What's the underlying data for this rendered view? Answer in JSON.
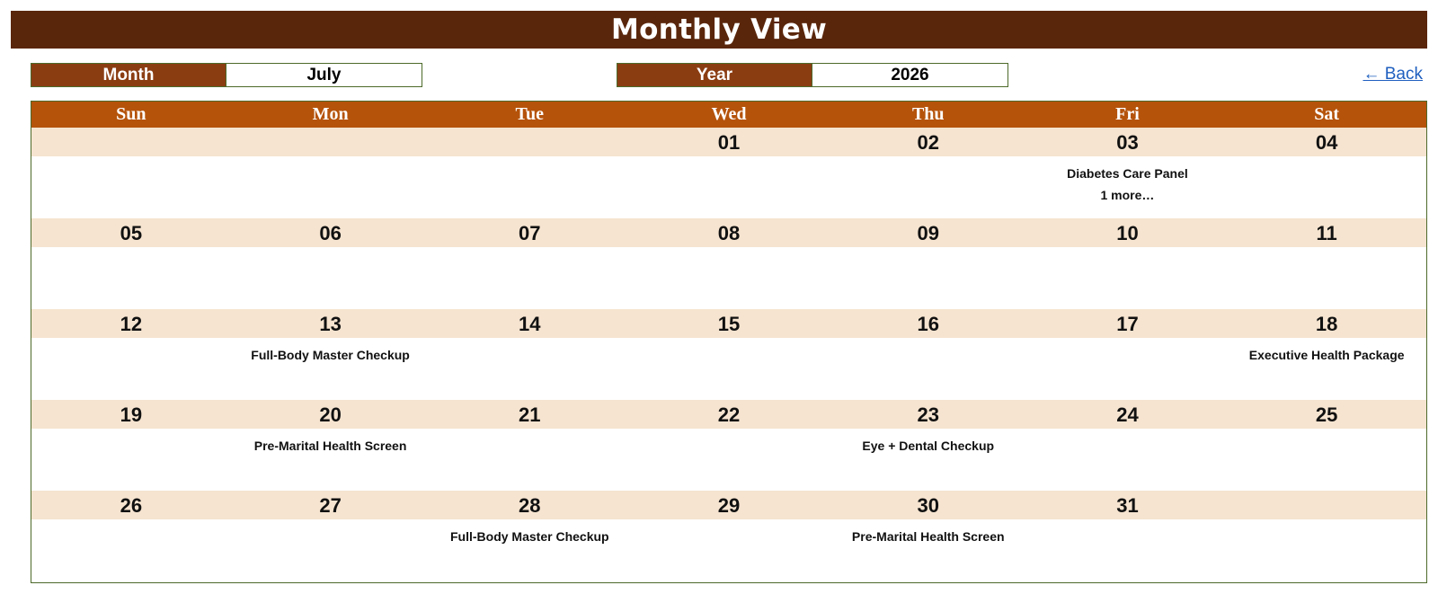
{
  "title": "Monthly View",
  "selectors": {
    "month_label": "Month",
    "month_value": "July",
    "year_label": "Year",
    "year_value": "2026"
  },
  "back_link": "← Back",
  "weekdays": [
    "Sun",
    "Mon",
    "Tue",
    "Wed",
    "Thu",
    "Fri",
    "Sat"
  ],
  "weeks": [
    {
      "dates": [
        "",
        "",
        "",
        "01",
        "02",
        "03",
        "04"
      ],
      "events": [
        [],
        [],
        [],
        [],
        [],
        [
          "Diabetes Care Panel",
          "1 more…"
        ],
        []
      ]
    },
    {
      "dates": [
        "05",
        "06",
        "07",
        "08",
        "09",
        "10",
        "11"
      ],
      "events": [
        [],
        [],
        [],
        [],
        [],
        [],
        []
      ]
    },
    {
      "dates": [
        "12",
        "13",
        "14",
        "15",
        "16",
        "17",
        "18"
      ],
      "events": [
        [],
        [
          "Full-Body Master Checkup"
        ],
        [],
        [],
        [],
        [],
        [
          "Executive Health Package"
        ]
      ]
    },
    {
      "dates": [
        "19",
        "20",
        "21",
        "22",
        "23",
        "24",
        "25"
      ],
      "events": [
        [],
        [
          "Pre-Marital Health Screen"
        ],
        [],
        [],
        [
          "Eye + Dental Checkup"
        ],
        [],
        []
      ]
    },
    {
      "dates": [
        "26",
        "27",
        "28",
        "29",
        "30",
        "31",
        ""
      ],
      "events": [
        [],
        [],
        [
          "Full-Body Master Checkup"
        ],
        [],
        [
          "Pre-Marital Health Screen"
        ],
        [],
        []
      ]
    }
  ],
  "colors": {
    "title_bg": "#5a260b",
    "label_bg": "#8b3d12",
    "weekday_bg": "#b5530b",
    "date_row_bg": "#f6e4d0",
    "border": "#4d6a2a",
    "link": "#1f5fbf"
  }
}
